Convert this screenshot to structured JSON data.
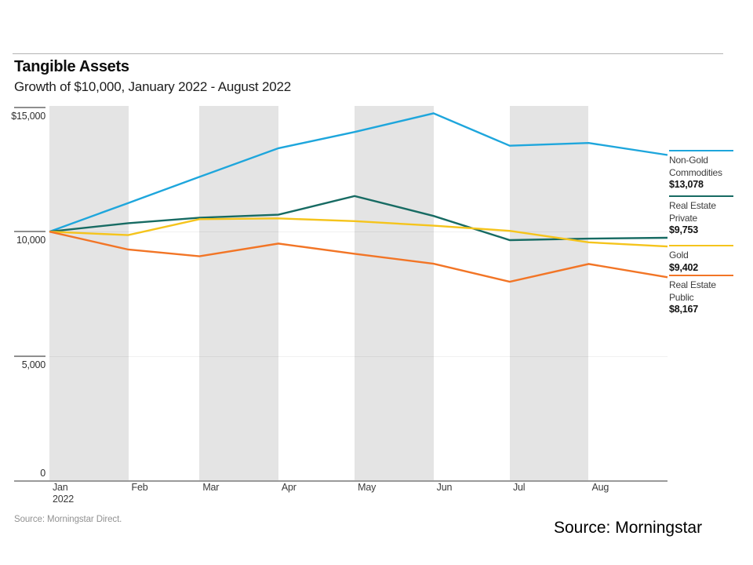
{
  "header": {
    "title": "Tangible Assets",
    "subtitle": "Growth of $10,000, January 2022 - August 2022"
  },
  "footer": {
    "source_note": "Source: Morningstar Direct."
  },
  "slide": {
    "caption": "Source: Morningstar"
  },
  "chart_data": {
    "type": "line",
    "title": "Tangible Assets",
    "subtitle": "Growth of $10,000, January 2022 - August 2022",
    "ylim": [
      0,
      15000
    ],
    "grid": "horizontal-faint",
    "legend_position": "right",
    "y_ticks": [
      {
        "value": 15000,
        "label": "$15,000"
      },
      {
        "value": 10000,
        "label": "10,000"
      },
      {
        "value": 5000,
        "label": "5,000"
      },
      {
        "value": 0,
        "label": "0"
      }
    ],
    "months": [
      {
        "label": "Jan",
        "sublabel": "2022",
        "days": 31,
        "shaded": true
      },
      {
        "label": "Feb",
        "days": 28,
        "shaded": false
      },
      {
        "label": "Mar",
        "days": 31,
        "shaded": true
      },
      {
        "label": "Apr",
        "days": 30,
        "shaded": false
      },
      {
        "label": "May",
        "days": 31,
        "shaded": true
      },
      {
        "label": "Jun",
        "days": 30,
        "shaded": false
      },
      {
        "label": "Jul",
        "days": 31,
        "shaded": true
      },
      {
        "label": "Aug",
        "days": 31,
        "shaded": false
      }
    ],
    "x_day_offsets": [
      0,
      31,
      59,
      90,
      120,
      151,
      181,
      212,
      243
    ],
    "x_total_days": 243,
    "x_note": "values are $10,000 at Jan 1 2022 then month-end values Jan-Aug 2022",
    "series": [
      {
        "name": "Non-Gold Commodities",
        "legend_lines": [
          "Non-Gold",
          "Commodities"
        ],
        "final_value": 13078,
        "final_label": "$13,078",
        "color": "#1ea6dc",
        "values": [
          10000,
          11150,
          12200,
          13350,
          14000,
          14750,
          13450,
          13560,
          13078
        ]
      },
      {
        "name": "Real Estate Private",
        "legend_lines": [
          "Real Estate",
          "Private"
        ],
        "final_value": 9753,
        "final_label": "$9,753",
        "color": "#176b63",
        "values": [
          10000,
          10340,
          10560,
          10680,
          11430,
          10630,
          9660,
          9720,
          9753
        ]
      },
      {
        "name": "Gold",
        "legend_lines": [
          "Gold"
        ],
        "final_value": 9402,
        "final_label": "$9,402",
        "color": "#f5c41c",
        "values": [
          10000,
          9860,
          10500,
          10530,
          10420,
          10240,
          10030,
          9570,
          9402
        ]
      },
      {
        "name": "Real Estate Public",
        "legend_lines": [
          "Real Estate",
          "Public"
        ],
        "final_value": 8167,
        "final_label": "$8,167",
        "color": "#f27526",
        "values": [
          10000,
          9280,
          9010,
          9520,
          9110,
          8710,
          7990,
          8700,
          8167
        ]
      }
    ]
  }
}
